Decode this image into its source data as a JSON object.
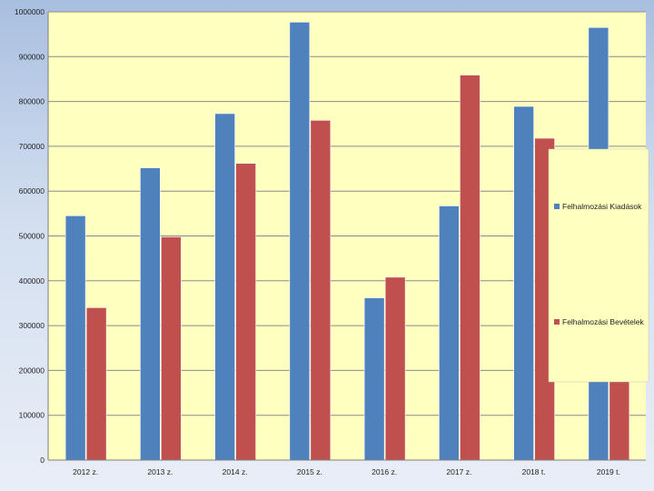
{
  "chart_data": {
    "type": "bar",
    "title": "",
    "xlabel": "",
    "ylabel": "",
    "categories": [
      "2012 z.",
      "2013 z.",
      "2014 z.",
      "2015 z.",
      "2016 z.",
      "2017 z.",
      "2018 t.",
      "2019 t."
    ],
    "series": [
      {
        "name": "Felhalmozási Kiadások",
        "color": "#4f81bd",
        "values": [
          545000,
          652000,
          773000,
          977000,
          362000,
          567000,
          789000,
          965000
        ]
      },
      {
        "name": "Felhalmozási Bevételek",
        "color": "#c0504d",
        "values": [
          340000,
          498000,
          662000,
          758000,
          408000,
          859000,
          718000,
          692000
        ]
      }
    ],
    "ylim": [
      0,
      1000000
    ],
    "yticks": [
      "0",
      "100000",
      "200000",
      "300000",
      "400000",
      "500000",
      "600000",
      "700000",
      "800000",
      "900000",
      "1000000"
    ],
    "grid": true,
    "legend_position": "right",
    "plot_background": "#ffffc0"
  }
}
